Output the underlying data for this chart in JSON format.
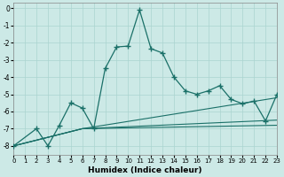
{
  "xlabel": "Humidex (Indice chaleur)",
  "xlim": [
    0,
    23
  ],
  "ylim": [
    -8.5,
    0.3
  ],
  "yticks": [
    0,
    -1,
    -2,
    -3,
    -4,
    -5,
    -6,
    -7,
    -8
  ],
  "xticks": [
    0,
    1,
    2,
    3,
    4,
    5,
    6,
    7,
    8,
    9,
    10,
    11,
    12,
    13,
    14,
    15,
    16,
    17,
    18,
    19,
    20,
    21,
    22,
    23
  ],
  "bg_color": "#cce9e6",
  "grid_color": "#aad4d0",
  "line_color": "#1a7068",
  "main_x": [
    0,
    2,
    3,
    4,
    5,
    6,
    7,
    8,
    9,
    10,
    11,
    12,
    13,
    14,
    15,
    16,
    17,
    18,
    19,
    20,
    21,
    22,
    23
  ],
  "main_y": [
    -8.0,
    -7.0,
    -8.0,
    -6.8,
    -5.5,
    -5.8,
    -7.0,
    -3.5,
    -2.25,
    -2.2,
    -0.1,
    -2.35,
    -2.6,
    -4.0,
    -4.8,
    -5.0,
    -4.8,
    -4.5,
    -5.3,
    -5.55,
    -5.4,
    -6.55,
    -5.0
  ],
  "trend1_x": [
    0,
    6,
    23
  ],
  "trend1_y": [
    -8.0,
    -7.0,
    -5.2
  ],
  "trend2_x": [
    0,
    6,
    23
  ],
  "trend2_y": [
    -8.0,
    -7.0,
    -6.8
  ],
  "trend3_x": [
    0,
    6,
    23
  ],
  "trend3_y": [
    -8.0,
    -7.0,
    -6.5
  ]
}
